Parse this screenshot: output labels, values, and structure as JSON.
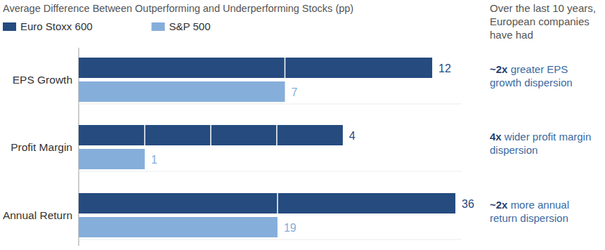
{
  "header_note": "Over the last 10 years, European companies have had",
  "chart_data": [
    {
      "type": "bar",
      "orientation": "horizontal",
      "title": "Average Difference Between Outperforming and Underperforming Stocks (pp)",
      "legend": "top-left",
      "categories": [
        "EPS Growth"
      ],
      "series": [
        {
          "name": "Euro Stoxx 600",
          "color": "#254b7f",
          "values": [
            12
          ]
        },
        {
          "name": "S&P 500",
          "color": "#86aedb",
          "values": [
            7
          ]
        }
      ],
      "xlim": [
        0,
        13
      ],
      "tick_labels": false,
      "data_labels": true,
      "annotation": {
        "emphasis": "~2x",
        "text": "greater EPS growth dispersion"
      }
    },
    {
      "type": "bar",
      "orientation": "horizontal",
      "categories": [
        "Profit Margin"
      ],
      "series": [
        {
          "color": "#254b7f",
          "values": [
            4
          ]
        },
        {
          "color": "#86aedb",
          "values": [
            1
          ]
        }
      ],
      "xlim": [
        0,
        5.8
      ],
      "tick_labels": false,
      "data_labels": true,
      "annotation": {
        "emphasis": "4x",
        "text": "wider profit margin dispersion"
      }
    },
    {
      "type": "bar",
      "orientation": "horizontal",
      "categories": [
        "Annual Return"
      ],
      "series": [
        {
          "color": "#254b7f",
          "values": [
            36
          ]
        },
        {
          "color": "#86aedb",
          "values": [
            19
          ]
        }
      ],
      "xlim": [
        0,
        36.6
      ],
      "tick_labels": false,
      "data_labels": true,
      "annotation": {
        "emphasis": "~2x",
        "text": "more annual return dispersion"
      }
    }
  ]
}
